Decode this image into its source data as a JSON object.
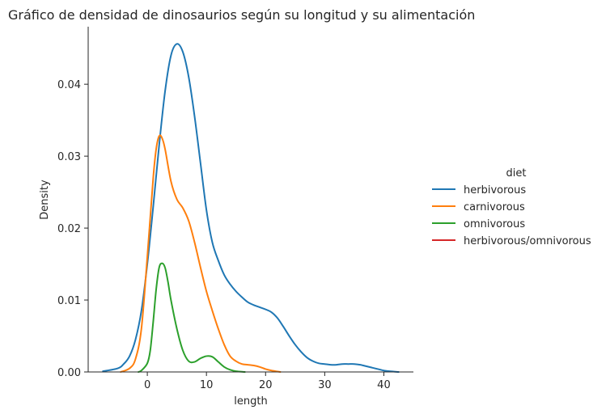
{
  "chart_data": {
    "type": "line",
    "title": "Gráfico de densidad de dinosaurios según su longitud y su alimentación",
    "xlabel": "length",
    "ylabel": "Density",
    "xlim": [
      -10,
      45
    ],
    "ylim": [
      0,
      0.048
    ],
    "xticks": [
      0,
      10,
      20,
      30,
      40
    ],
    "yticks": [
      0.0,
      0.01,
      0.02,
      0.03,
      0.04
    ],
    "ytick_labels": [
      "0.00",
      "0.01",
      "0.02",
      "0.03",
      "0.04"
    ],
    "grid": false,
    "legend": {
      "title": "diet",
      "placement": "right"
    },
    "series": [
      {
        "name": "herbivorous",
        "color": "#1f77b4",
        "x": [
          -7.5,
          -5,
          -4,
          -3,
          -2,
          -1,
          0,
          1,
          2,
          3,
          4,
          5,
          6,
          7,
          8,
          9,
          10,
          11,
          12,
          13,
          14,
          15,
          16,
          17,
          18,
          19,
          20,
          21,
          22,
          23,
          24,
          25,
          26,
          27,
          28,
          29,
          30,
          31,
          32,
          33,
          34,
          35,
          36,
          37,
          38,
          39,
          40,
          41,
          42.5
        ],
        "y": [
          0.0001,
          0.0005,
          0.0011,
          0.0022,
          0.0045,
          0.0085,
          0.015,
          0.023,
          0.0315,
          0.039,
          0.044,
          0.0456,
          0.0445,
          0.041,
          0.0355,
          0.029,
          0.0225,
          0.018,
          0.0155,
          0.0135,
          0.0122,
          0.0112,
          0.0104,
          0.0097,
          0.0093,
          0.009,
          0.0087,
          0.0083,
          0.0075,
          0.0063,
          0.005,
          0.0038,
          0.0028,
          0.002,
          0.0015,
          0.0012,
          0.0011,
          0.001,
          0.001,
          0.0011,
          0.0011,
          0.0011,
          0.001,
          0.0008,
          0.0006,
          0.0004,
          0.0002,
          0.0001,
          0.0
        ]
      },
      {
        "name": "carnivorous",
        "color": "#ff7f0e",
        "x": [
          -4.5,
          -3,
          -2,
          -1,
          0,
          1,
          1.5,
          2,
          2.5,
          3,
          4,
          5,
          6,
          7,
          8,
          9,
          10,
          11,
          12,
          13,
          14,
          15,
          16,
          17,
          18,
          19,
          20,
          21,
          22.5
        ],
        "y": [
          0.0,
          0.0005,
          0.0018,
          0.006,
          0.016,
          0.027,
          0.031,
          0.0328,
          0.0325,
          0.031,
          0.0265,
          0.024,
          0.0228,
          0.021,
          0.018,
          0.0145,
          0.0112,
          0.0085,
          0.006,
          0.0038,
          0.0022,
          0.0015,
          0.0011,
          0.001,
          0.0009,
          0.0007,
          0.0004,
          0.0002,
          0.0
        ]
      },
      {
        "name": "omnivorous",
        "color": "#2ca02c",
        "x": [
          -1.5,
          -1,
          0,
          0.5,
          1,
          1.5,
          2,
          2.5,
          3,
          3.5,
          4,
          5,
          6,
          7,
          8,
          9,
          10,
          11,
          12,
          13,
          14,
          15,
          16.5
        ],
        "y": [
          0.0,
          0.0002,
          0.0012,
          0.003,
          0.007,
          0.0115,
          0.0145,
          0.0151,
          0.0145,
          0.0125,
          0.01,
          0.006,
          0.003,
          0.0015,
          0.0014,
          0.0019,
          0.0022,
          0.0021,
          0.0014,
          0.0007,
          0.0003,
          0.0001,
          0.0
        ]
      },
      {
        "name": "herbivorous/omnivorous",
        "color": "#d62728",
        "x": [],
        "y": []
      }
    ]
  }
}
